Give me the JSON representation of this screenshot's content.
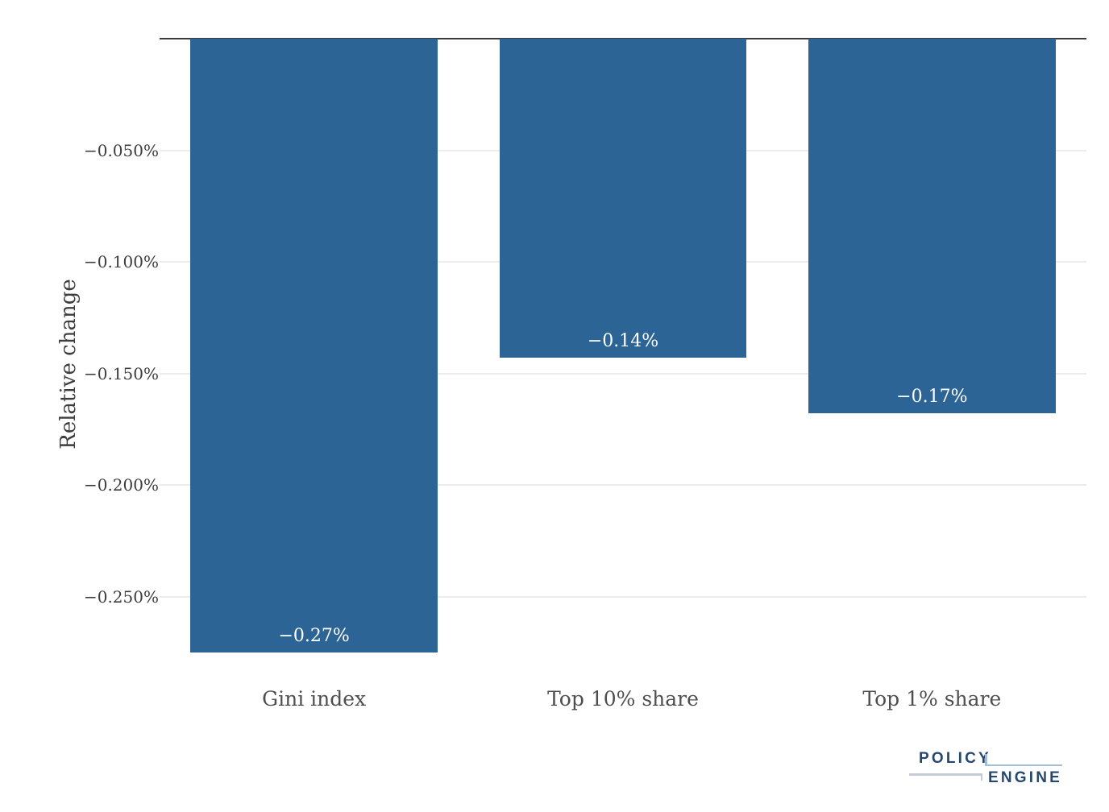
{
  "chart_data": {
    "type": "bar",
    "title": "",
    "categories": [
      "Gini index",
      "Top 10% share",
      "Top 1% share"
    ],
    "values_pct": [
      -0.275,
      -0.143,
      -0.168
    ],
    "bar_labels": [
      "−0.27%",
      "−0.14%",
      "−0.17%"
    ],
    "xlabel": "",
    "ylabel": "Relative change",
    "yticks": [
      {
        "value": -0.05,
        "label": "−0.050%"
      },
      {
        "value": -0.1,
        "label": "−0.100%"
      },
      {
        "value": -0.15,
        "label": "−0.150%"
      },
      {
        "value": -0.2,
        "label": "−0.200%"
      },
      {
        "value": -0.25,
        "label": "−0.250%"
      }
    ],
    "ylim": [
      -0.285,
      0
    ],
    "grid": true,
    "legend_position": "none",
    "colors": {
      "bar": "#2C6496",
      "bar_label_text": "#FFFFFF",
      "gridline": "#ECECEC",
      "zero_line": "#3B3B3B",
      "tick_label": "#3D3D3D",
      "category_label": "#4E4E4E",
      "axis_title": "#3D3D3D",
      "background": "#FFFFFF"
    }
  },
  "footer": {
    "logo": {
      "line1": "POLICY",
      "line2": "ENGINE",
      "text_color": "#25496E",
      "bracket_right_color": "#A4BCD6",
      "bracket_left_color": "#C5CCD6"
    }
  }
}
